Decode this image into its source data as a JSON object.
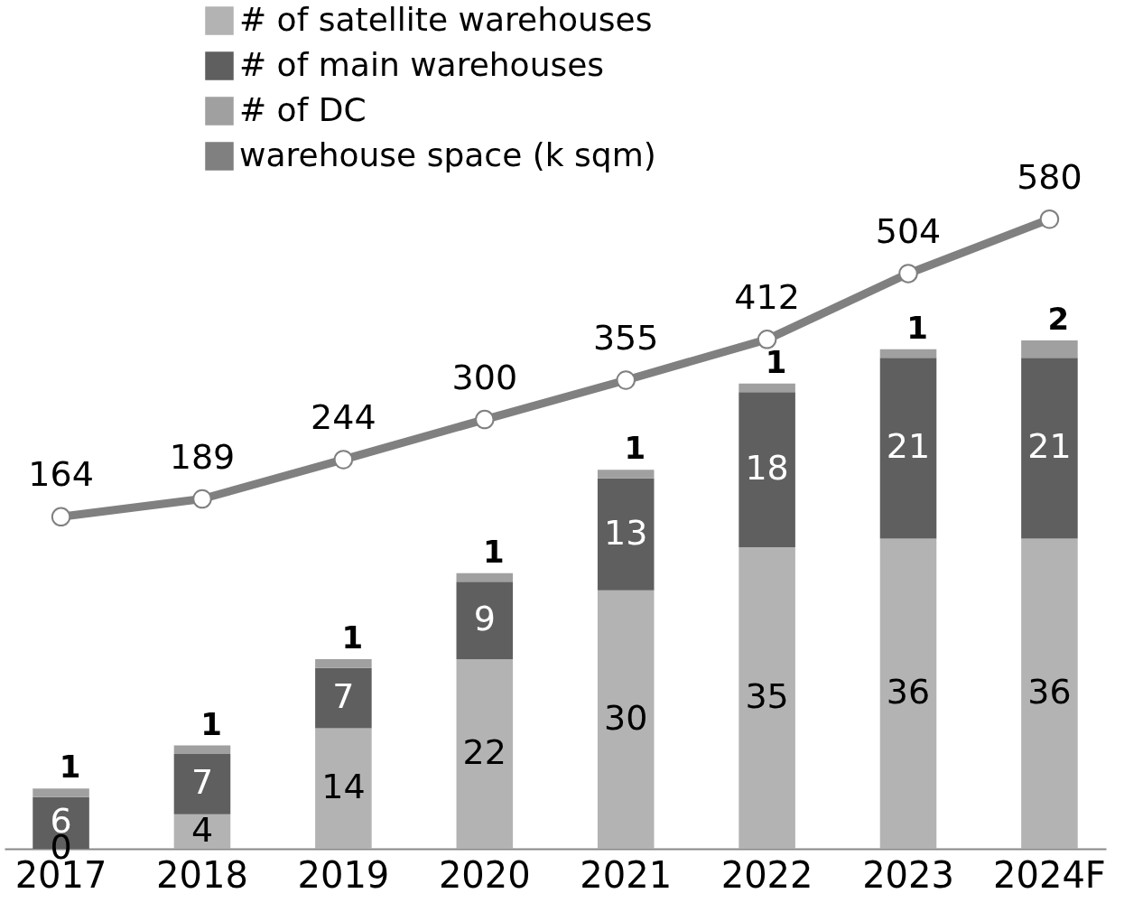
{
  "chart_data": {
    "type": "bar",
    "stacked": true,
    "data_labels": true,
    "legend": "top",
    "grid": false,
    "categories": [
      "2017",
      "2018",
      "2019",
      "2020",
      "2021",
      "2022",
      "2023",
      "2024F"
    ],
    "ylim": [
      0,
      98
    ],
    "y2lim": [
      -300,
      880
    ],
    "series": [
      {
        "name": "# of satellite  warehouses",
        "color": "#b3b3b3",
        "values": [
          0,
          4,
          14,
          22,
          30,
          35,
          36,
          36
        ]
      },
      {
        "name": "# of main warehouses",
        "color": "#5f5f5f",
        "values": [
          6,
          7,
          7,
          9,
          13,
          18,
          21,
          21
        ]
      },
      {
        "name": "# of DC",
        "color": "#a0a0a0",
        "values": [
          1,
          1,
          1,
          1,
          1,
          1,
          1,
          2
        ]
      },
      {
        "name": "warehouse space (k sqm)",
        "type": "line",
        "axis": "y2",
        "marker": "circle",
        "color": "#808080",
        "values": [
          164,
          189,
          244,
          300,
          355,
          412,
          504,
          580
        ]
      }
    ]
  }
}
